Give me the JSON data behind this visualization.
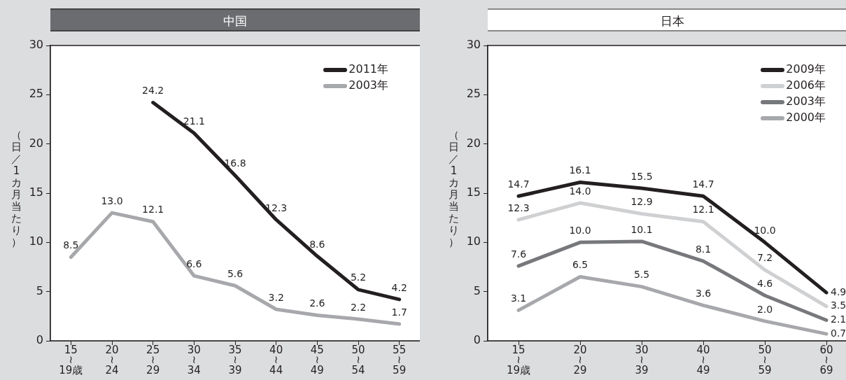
{
  "chart_data": [
    {
      "type": "line",
      "title": "中国",
      "ylabel": "（日／1カ月当たり）",
      "categories": [
        "15\n≀\n19歳",
        "20\n≀\n24",
        "25\n≀\n29",
        "30\n≀\n34",
        "35\n≀\n39",
        "40\n≀\n44",
        "45\n≀\n49",
        "50\n≀\n54",
        "55\n≀\n59"
      ],
      "series": [
        {
          "name": "2011年",
          "color": "#231f20",
          "values": [
            null,
            null,
            24.2,
            21.1,
            16.8,
            12.3,
            8.6,
            5.2,
            4.2
          ],
          "value_labels": [
            null,
            null,
            "24.2",
            "21.1",
            "16.8",
            "12.3",
            "8.6",
            "5.2",
            "4.2"
          ]
        },
        {
          "name": "2003年",
          "color": "#a7a8ab",
          "values": [
            8.5,
            13.0,
            12.1,
            6.6,
            5.6,
            3.2,
            2.6,
            2.2,
            1.7
          ],
          "value_labels": [
            "8.5",
            "13.0",
            "12.1",
            "6.6",
            "5.6",
            "3.2",
            "2.6",
            "2.2",
            "1.7"
          ]
        }
      ],
      "ylim": [
        0,
        30
      ],
      "yticks": [
        0,
        5,
        10,
        15,
        20,
        25,
        30
      ],
      "grid": false,
      "legend": "top right",
      "marker": "none",
      "line_style": "solid"
    },
    {
      "type": "line",
      "title": "日本",
      "ylabel": "（日／1カ月当たり）",
      "categories": [
        "15\n≀\n19歳",
        "20\n≀\n29",
        "30\n≀\n39",
        "40\n≀\n49",
        "50\n≀\n59",
        "60\n≀\n69"
      ],
      "series": [
        {
          "name": "2009年",
          "color": "#231f20",
          "values": [
            14.7,
            16.1,
            15.5,
            14.7,
            10.0,
            4.9
          ],
          "value_labels": [
            "14.7",
            "16.1",
            "15.5",
            "14.7",
            "10.0",
            "4.9"
          ]
        },
        {
          "name": "2006年",
          "color": "#cfd0d2",
          "values": [
            12.3,
            14.0,
            12.9,
            12.1,
            7.2,
            3.5
          ],
          "value_labels": [
            "12.3",
            "14.0",
            "12.9",
            "12.1",
            "7.2",
            "3.5"
          ]
        },
        {
          "name": "2003年",
          "color": "#77787b",
          "values": [
            7.6,
            10.0,
            10.1,
            8.1,
            4.6,
            2.1
          ],
          "value_labels": [
            "7.6",
            "10.0",
            "10.1",
            "8.1",
            "4.6",
            "2.1"
          ]
        },
        {
          "name": "2000年",
          "color": "#a7a8ab",
          "values": [
            3.1,
            6.5,
            5.5,
            3.6,
            2.0,
            0.7
          ],
          "value_labels": [
            "3.1",
            "6.5",
            "5.5",
            "3.6",
            "2.0",
            "0.7"
          ]
        }
      ],
      "ylim": [
        0,
        30
      ],
      "yticks": [
        0,
        5,
        10,
        15,
        20,
        25,
        30
      ],
      "grid": false,
      "legend": "top right",
      "marker": "none",
      "line_style": "solid"
    }
  ]
}
